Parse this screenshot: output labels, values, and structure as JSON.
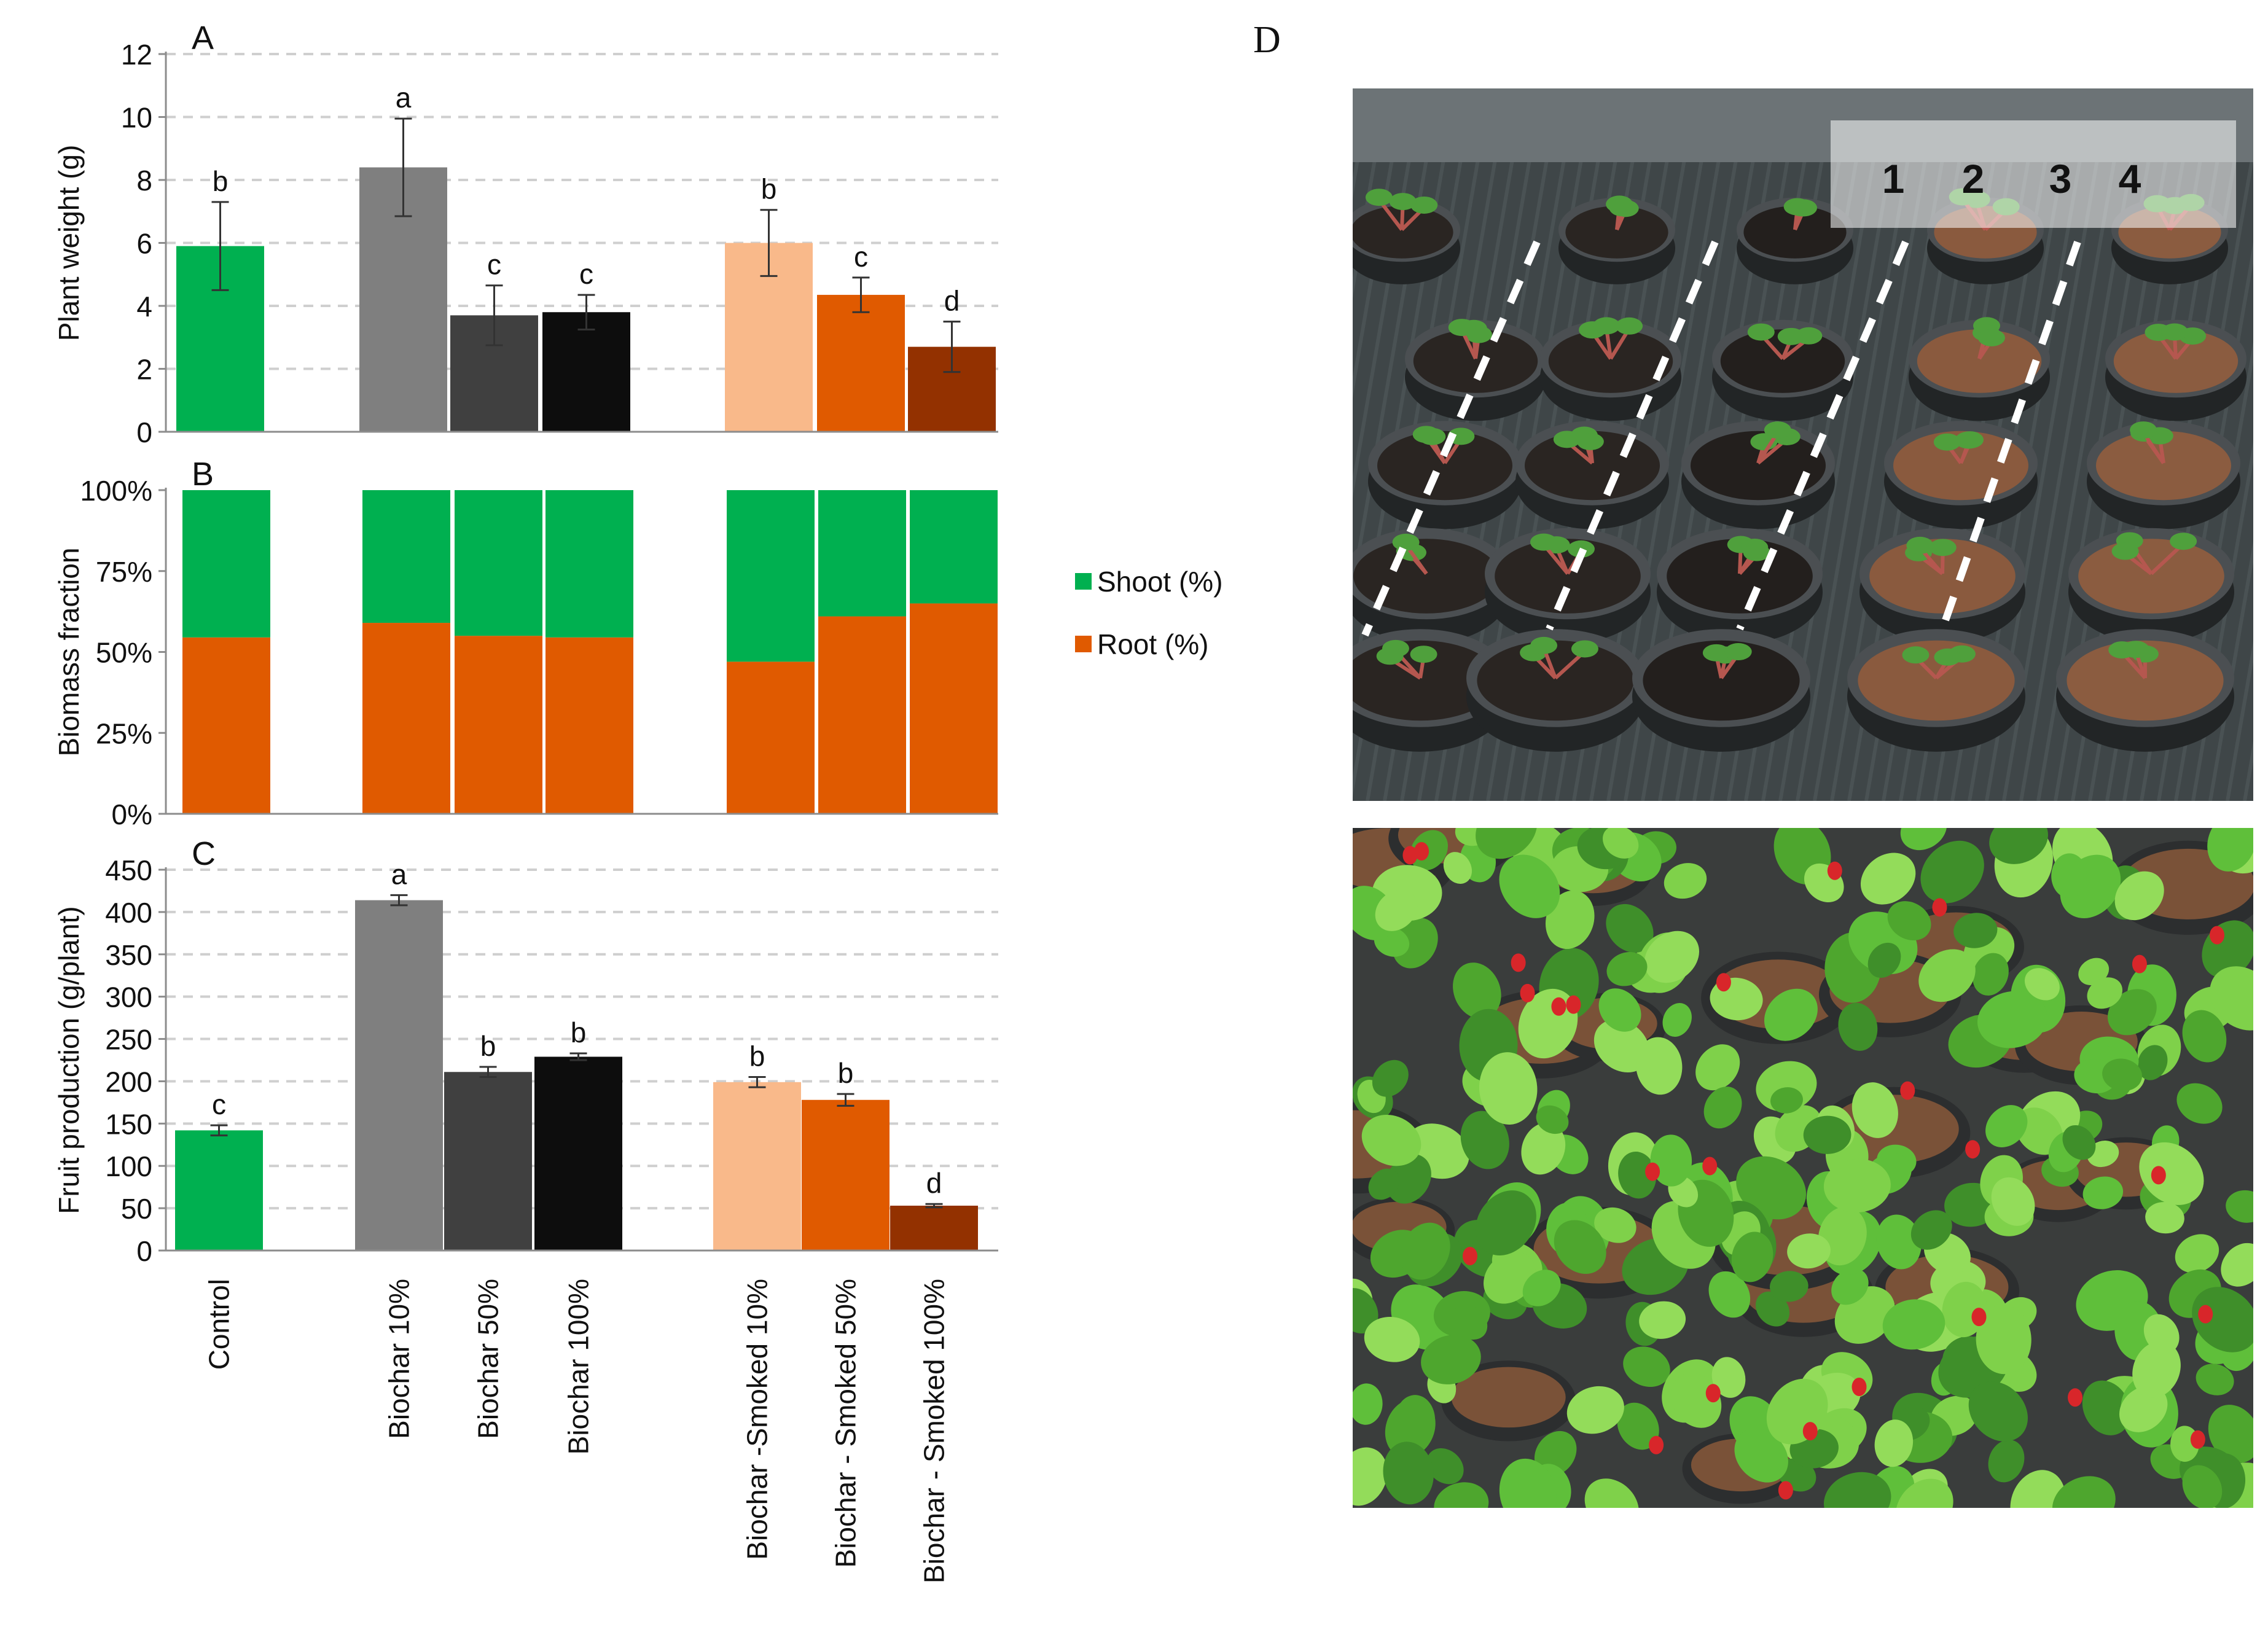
{
  "colors": {
    "control": "#00b050",
    "biochar10": "#7f7f7f",
    "biochar50": "#404040",
    "biochar100": "#0d0d0d",
    "smoked10": "#f9b98a",
    "smoked50": "#e05a00",
    "smoked100": "#933100",
    "shoot": "#00b050",
    "root": "#e05a00"
  },
  "chart_data": [
    {
      "panel": "A",
      "type": "bar",
      "ylabel": "Plant weight (g)",
      "ylim": [
        0,
        12
      ],
      "yticks": [
        0,
        2,
        4,
        6,
        8,
        10,
        12
      ],
      "grid": true,
      "categories": [
        "Control",
        "Biochar 10%",
        "Biochar 50%",
        "Biochar 100%",
        "Biochar -Smoked 10%",
        "Biochar - Smoked 50%",
        "Biochar - Smoked 100%"
      ],
      "values": [
        5.9,
        8.4,
        3.7,
        3.8,
        6.0,
        4.35,
        2.7
      ],
      "errors": [
        1.4,
        1.55,
        0.95,
        0.55,
        1.05,
        0.55,
        0.8
      ],
      "letters": [
        "b",
        "a",
        "c",
        "c",
        "b",
        "c",
        "d"
      ]
    },
    {
      "panel": "B",
      "type": "bar",
      "stacked": true,
      "ylabel": "Biomass fraction",
      "ylim": [
        0,
        100
      ],
      "yticks": [
        "0%",
        "25%",
        "50%",
        "75%",
        "100%"
      ],
      "categories": [
        "Control",
        "Biochar 10%",
        "Biochar 50%",
        "Biochar 100%",
        "Biochar -Smoked 10%",
        "Biochar - Smoked 50%",
        "Biochar - Smoked 100%"
      ],
      "series": [
        {
          "name": "Root (%)",
          "values": [
            54.5,
            59,
            55,
            54.5,
            47,
            61,
            65
          ]
        },
        {
          "name": "Shoot (%)",
          "values": [
            45.5,
            41,
            45,
            45.5,
            53,
            39,
            35
          ]
        }
      ],
      "legend": [
        "Shoot (%)",
        "Root (%)"
      ]
    },
    {
      "panel": "C",
      "type": "bar",
      "ylabel": "Fruit production (g/plant)",
      "ylim": [
        0,
        450
      ],
      "yticks": [
        0,
        50,
        100,
        150,
        200,
        250,
        300,
        350,
        400,
        450
      ],
      "grid": true,
      "categories": [
        "Control",
        "Biochar 10%",
        "Biochar 50%",
        "Biochar 100%",
        "Biochar -Smoked 10%",
        "Biochar - Smoked 50%",
        "Biochar - Smoked 100%"
      ],
      "values": [
        142,
        414,
        211,
        229,
        199,
        178,
        53
      ],
      "errors": [
        6,
        6,
        6,
        4,
        6,
        7,
        2
      ],
      "letters": [
        "c",
        "a",
        "b",
        "b",
        "b",
        "b",
        "d"
      ]
    }
  ],
  "panel_d": {
    "label": "D",
    "pot_labels": [
      "1",
      "2",
      "3",
      "4"
    ]
  }
}
